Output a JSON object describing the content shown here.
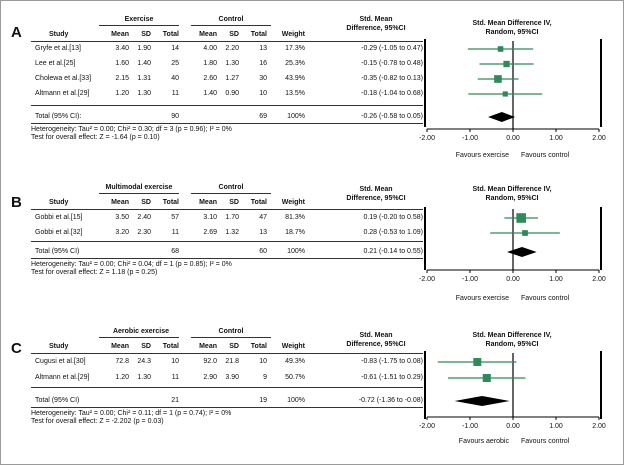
{
  "chart_data": [
    {
      "type": "forest",
      "panel_label": "A",
      "group_header": "Exercise",
      "control_header": "Control",
      "columns": [
        "Study",
        "Mean",
        "SD",
        "Total",
        "Mean",
        "SD",
        "Total",
        "Weight"
      ],
      "effect_header_line1": "Std. Mean",
      "effect_header_line2": "Difference, 95%CI",
      "plot_header_line1": "Std. Mean Difference IV,",
      "plot_header_line2": "Random, 95%CI",
      "studies": [
        {
          "name": "Gryfe et al.[13]",
          "mean1": "3.40",
          "sd1": "1.90",
          "n1": "14",
          "mean2": "4.00",
          "sd2": "2.20",
          "n2": "13",
          "weight": "17.3%",
          "ci_text": "-0.29 (-1.05 to 0.47)",
          "est": -0.29,
          "lo": -1.05,
          "hi": 0.47,
          "w": 17.3
        },
        {
          "name": "Lee et al.[25]",
          "mean1": "1.60",
          "sd1": "1.40",
          "n1": "25",
          "mean2": "1.80",
          "sd2": "1.30",
          "n2": "16",
          "weight": "25.3%",
          "ci_text": "-0.15 (-0.78 to 0.48)",
          "est": -0.15,
          "lo": -0.78,
          "hi": 0.48,
          "w": 25.3
        },
        {
          "name": "Cholewa et al.[33]",
          "mean1": "2.15",
          "sd1": "1.31",
          "n1": "40",
          "mean2": "2.60",
          "sd2": "1.27",
          "n2": "30",
          "weight": "43.9%",
          "ci_text": "-0.35 (-0.82 to 0.13)",
          "est": -0.35,
          "lo": -0.82,
          "hi": 0.13,
          "w": 43.9
        },
        {
          "name": "Altmann et al.[29]",
          "mean1": "1.20",
          "sd1": "1.30",
          "n1": "11",
          "mean2": "1.40",
          "sd2": "0.90",
          "n2": "10",
          "weight": "13.5%",
          "ci_text": "-0.18 (-1.04 to 0.68)",
          "est": -0.18,
          "lo": -1.04,
          "hi": 0.68,
          "w": 13.5
        }
      ],
      "total": {
        "name": "Total (95% CI):",
        "n1": "90",
        "n2": "69",
        "weight": "100%",
        "ci_text": "-0.26 (-0.58 to 0.05)",
        "est": -0.26,
        "lo": -0.58,
        "hi": 0.05
      },
      "heterogeneity": "Heterogeneity:  Tau² = 0.00; Chi² = 0.30; df = 3 (p = 0.96); I² = 0%",
      "overall_effect": "Test for overall effect: Z = -1.64 (p = 0.10)",
      "x_ticks": [
        -2,
        -1,
        0,
        1,
        2
      ],
      "x_tick_labels": [
        "-2.00",
        "-1.00",
        "0.00",
        "1.00",
        "2.00"
      ],
      "xlim": [
        -2,
        2
      ],
      "favours_left": "Favours exercise",
      "favours_right": "Favours control"
    },
    {
      "type": "forest",
      "panel_label": "B",
      "group_header": "Multimodal exercise",
      "control_header": "Control",
      "columns": [
        "Study",
        "Mean",
        "SD",
        "Total",
        "Mean",
        "SD",
        "Total",
        "Weight"
      ],
      "effect_header_line1": "Std. Mean",
      "effect_header_line2": "Difference, 95%CI",
      "plot_header_line1": "Std. Mean Difference IV,",
      "plot_header_line2": "Random, 95%CI",
      "studies": [
        {
          "name": "Gobbi et al.[15]",
          "mean1": "3.50",
          "sd1": "2.40",
          "n1": "57",
          "mean2": "3.10",
          "sd2": "1.70",
          "n2": "47",
          "weight": "81.3%",
          "ci_text": "0.19 (-0.20 to 0.58)",
          "est": 0.19,
          "lo": -0.2,
          "hi": 0.58,
          "w": 81.3
        },
        {
          "name": "Gobbi et al.[32]",
          "mean1": "3.20",
          "sd1": "2.30",
          "n1": "11",
          "mean2": "2.69",
          "sd2": "1.32",
          "n2": "13",
          "weight": "18.7%",
          "ci_text": "0.28 (-0.53 to 1.09)",
          "est": 0.28,
          "lo": -0.53,
          "hi": 1.09,
          "w": 18.7
        }
      ],
      "total": {
        "name": "Total (95% CI)",
        "n1": "68",
        "n2": "60",
        "weight": "100%",
        "ci_text": "0.21  (-0.14 to 0.55)",
        "est": 0.21,
        "lo": -0.14,
        "hi": 0.55
      },
      "heterogeneity": "Heterogeneity:  Tau² = 0.00; Chi² = 0.04; df = 1 (p = 0.85); I² = 0%",
      "overall_effect": "Test for overall effect: Z = 1.18 (p = 0.25)",
      "x_ticks": [
        -2,
        -1,
        0,
        1,
        2
      ],
      "x_tick_labels": [
        "-2.00",
        "-1.00",
        "0.00",
        "1.00",
        "2.00"
      ],
      "xlim": [
        -2,
        2
      ],
      "favours_left": "Favours exercise",
      "favours_right": "Favours control"
    },
    {
      "type": "forest",
      "panel_label": "C",
      "group_header": "Aerobic exercise",
      "control_header": "Control",
      "columns": [
        "Study",
        "Mean",
        "SD",
        "Total",
        "Mean",
        "SD",
        "Total",
        "Weight"
      ],
      "effect_header_line1": "Std. Mean",
      "effect_header_line2": "Difference, 95%CI",
      "plot_header_line1": "Std. Mean Difference IV,",
      "plot_header_line2": "Random, 95%CI",
      "studies": [
        {
          "name": "Cugusi et al.[30]",
          "mean1": "72.8",
          "sd1": "24.3",
          "n1": "10",
          "mean2": "92.0",
          "sd2": "21.8",
          "n2": "10",
          "weight": "49.3%",
          "ci_text": "-0.83 (-1.75 to 0.08)",
          "est": -0.83,
          "lo": -1.75,
          "hi": 0.08,
          "w": 49.3
        },
        {
          "name": "Altmann et al.[29]",
          "mean1": "1.20",
          "sd1": "1.30",
          "n1": "11",
          "mean2": "2.90",
          "sd2": "3.90",
          "n2": "9",
          "weight": "50.7%",
          "ci_text": "-0.61 (-1.51 to 0.29)",
          "est": -0.61,
          "lo": -1.51,
          "hi": 0.29,
          "w": 50.7
        }
      ],
      "total": {
        "name": "Total (95% CI)",
        "n1": "21",
        "n2": "19",
        "weight": "100%",
        "ci_text": "-0.72 (-1.36 to -0.08)",
        "est": -0.72,
        "lo": -1.36,
        "hi": -0.08
      },
      "heterogeneity": "Heterogeneity:  Tau² = 0.00; Chi² = 0.11; df = 1 (p = 0.74); I² = 0%",
      "overall_effect": "Test for overall effect: Z = -2.202 (p = 0.03)",
      "x_ticks": [
        -2,
        -1,
        0,
        1,
        2
      ],
      "x_tick_labels": [
        "-2.00",
        "-1.00",
        "0.00",
        "1.00",
        "2.00"
      ],
      "xlim": [
        -2,
        2
      ],
      "favours_left": "Favours aerobic",
      "favours_right": "Favours control"
    }
  ],
  "colors": {
    "marker": "#2e8b57",
    "line": "#000000"
  }
}
